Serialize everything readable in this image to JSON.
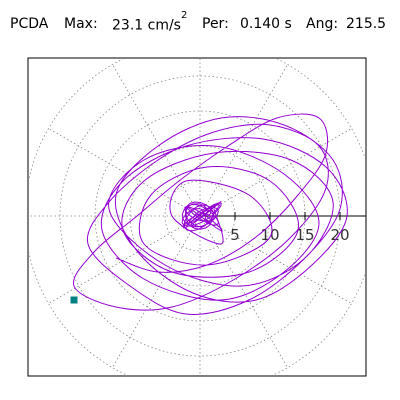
{
  "header": {
    "title": "PCDA",
    "max_label": "Max:",
    "max_value": "23.1 cm/s",
    "max_exp": "2",
    "per_label": "Per:",
    "per_value": "0.140 s",
    "ang_label": "Ang:",
    "ang_value": "215.5"
  },
  "chart_data": {
    "type": "scatter",
    "subtype": "polar-orbit",
    "radial_ticks": [
      5,
      10,
      15,
      20
    ],
    "radial_range": [
      0,
      25
    ],
    "grid": "dotted polar",
    "series": [
      {
        "color": "#9400d3",
        "x": [
          -12,
          -6,
          1,
          8,
          14,
          18,
          17,
          11,
          4,
          -3,
          -9,
          -15,
          -18,
          -12,
          -4,
          5,
          13,
          18,
          17,
          10,
          2,
          -6,
          -13,
          -16,
          -10,
          -2,
          7,
          15,
          20,
          19,
          12,
          3,
          -6,
          -12,
          -9,
          -1,
          8,
          16,
          21,
          18,
          9,
          -2,
          -11,
          -14,
          -8,
          3,
          12,
          17,
          12,
          2,
          -8,
          -13,
          -5,
          6,
          15,
          19,
          13,
          2,
          -8,
          -11,
          -4,
          7,
          14,
          10,
          1,
          -7,
          -8,
          1,
          10,
          7,
          -2,
          -4,
          3,
          2
        ],
        "y": [
          -6,
          -8,
          -7,
          -3,
          3,
          9,
          14,
          14,
          10,
          5,
          0,
          -5,
          -10,
          -13,
          -13,
          -9,
          -3,
          4,
          10,
          13,
          12,
          8,
          2,
          -4,
          -10,
          -14,
          -12,
          -6,
          1,
          8,
          13,
          14,
          10,
          3,
          -5,
          -11,
          -12,
          -7,
          0,
          7,
          11,
          10,
          5,
          -2,
          -9,
          -12,
          -8,
          -1,
          6,
          10,
          8,
          1,
          -7,
          -10,
          -6,
          2,
          8,
          9,
          5,
          -2,
          -8,
          -8,
          -2,
          5,
          7,
          3,
          -4,
          -7,
          -3,
          3,
          5,
          0,
          -4,
          1
        ]
      }
    ],
    "marker": {
      "shape": "square",
      "color": "#008080",
      "x": -18,
      "y": -12
    }
  }
}
